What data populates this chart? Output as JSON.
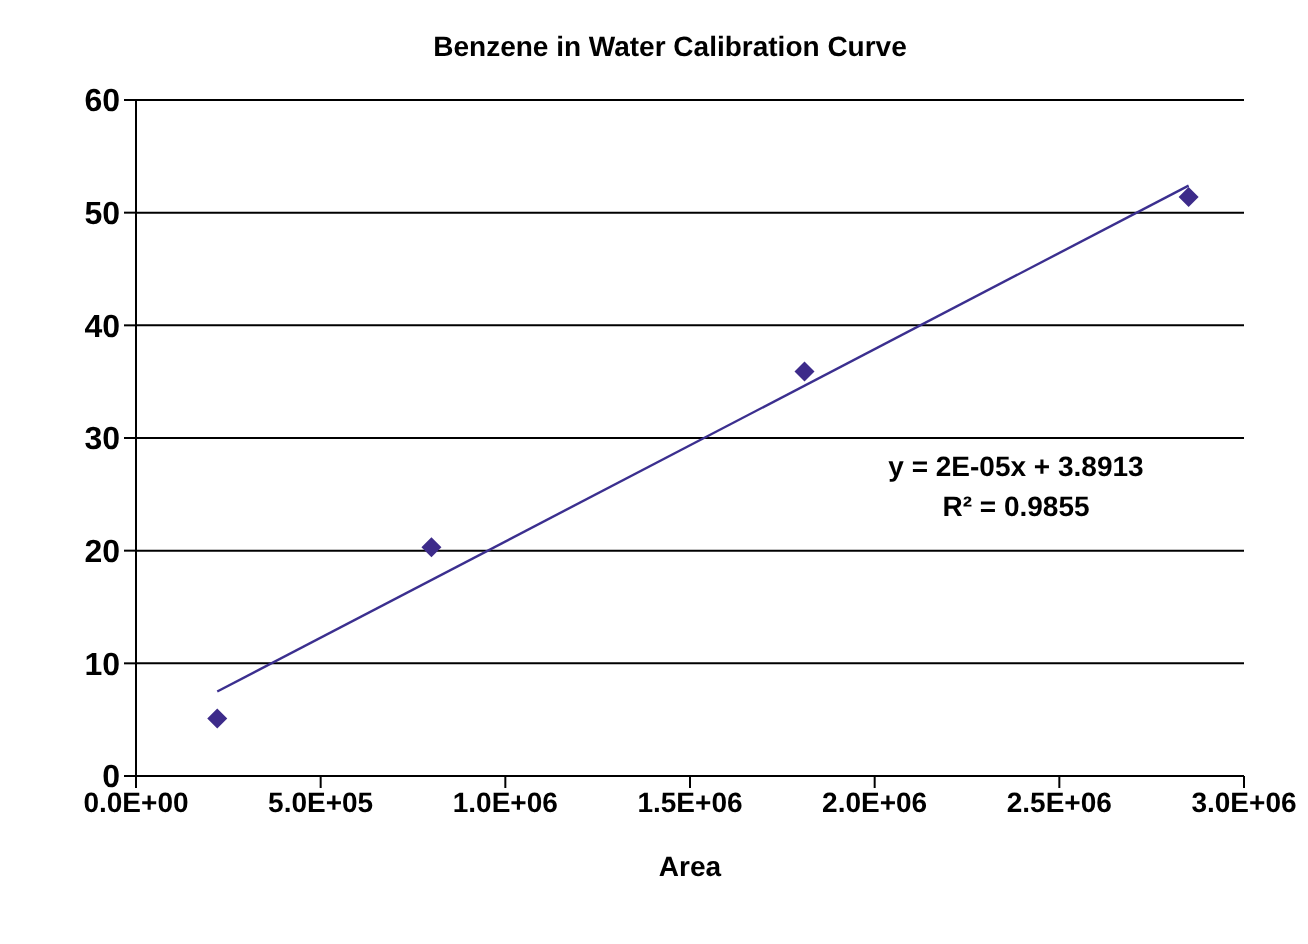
{
  "chart_data": {
    "type": "scatter",
    "title": "Benzene in Water Calibration Curve",
    "xlabel": "Area",
    "series": [
      {
        "color": "#3d2b8a",
        "marker": "diamond",
        "x": [
          220000,
          800000,
          1810000,
          2850000
        ],
        "values": [
          5.1,
          20.3,
          35.9,
          51.4
        ]
      },
      {
        "type": "line",
        "color": "#3b2f8f",
        "marker": "none",
        "x": [
          220000,
          2850000
        ],
        "values": [
          7.5,
          52.4
        ]
      }
    ],
    "annotations": [
      "y = 2E-05x + 3.8913",
      "R² = 0.9855"
    ],
    "xlim": [
      0,
      3000000
    ],
    "xticks": [
      {
        "value": 0,
        "label": "0.0E+00"
      },
      {
        "value": 500000,
        "label": "5.0E+05"
      },
      {
        "value": 1000000,
        "label": "1.0E+06"
      },
      {
        "value": 1500000,
        "label": "1.5E+06"
      },
      {
        "value": 2000000,
        "label": "2.0E+06"
      },
      {
        "value": 2500000,
        "label": "2.5E+06"
      },
      {
        "value": 3000000,
        "label": "3.0E+06"
      }
    ],
    "ylim": [
      0,
      60
    ],
    "yticks": [
      0,
      10,
      20,
      30,
      40,
      50,
      60
    ],
    "grid": "y",
    "legend": false
  }
}
